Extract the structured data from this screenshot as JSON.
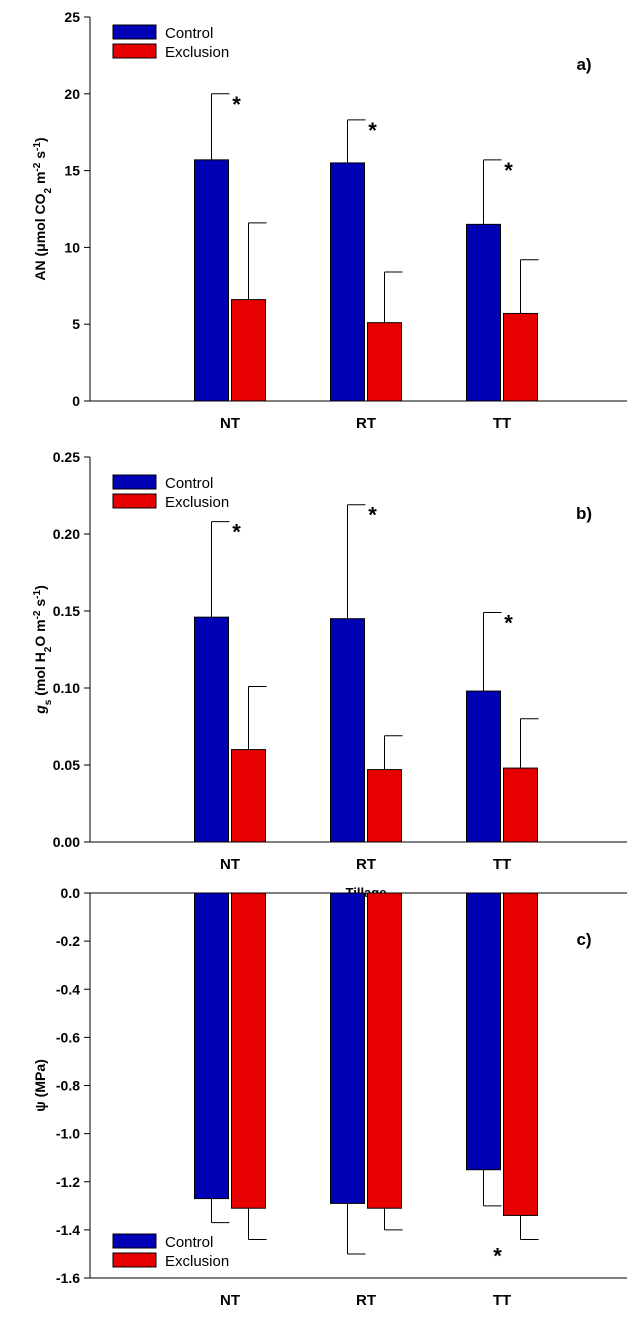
{
  "colors": {
    "control": "#0000b4",
    "exclusion": "#e60000"
  },
  "chart_data": [
    {
      "type": "bar",
      "panel_label": "a)",
      "categories": [
        "NT",
        "RT",
        "TT"
      ],
      "xlabel": "",
      "ylabel_parts": [
        "AN (",
        "μ",
        "mol CO",
        "2",
        " m",
        "-2",
        " s",
        "-1",
        ")"
      ],
      "ylim": [
        0,
        25
      ],
      "yticks": [
        0,
        5,
        10,
        15,
        20,
        25
      ],
      "ytick_labels": [
        "0",
        "5",
        "10",
        "15",
        "20",
        "25"
      ],
      "legend": {
        "position": "top-left",
        "entries": [
          "Control",
          "Exclusion"
        ]
      },
      "series": [
        {
          "name": "Control",
          "values": [
            15.7,
            15.5,
            11.5
          ],
          "error": [
            4.3,
            2.8,
            4.2
          ]
        },
        {
          "name": "Exclusion",
          "values": [
            6.6,
            5.1,
            5.7
          ],
          "error": [
            5.0,
            3.3,
            3.5
          ]
        }
      ],
      "annotations": [
        {
          "text": "*",
          "category": "NT",
          "series": "Control"
        },
        {
          "text": "*",
          "category": "RT",
          "series": "Control"
        },
        {
          "text": "*",
          "category": "TT",
          "series": "Control"
        }
      ]
    },
    {
      "type": "bar",
      "panel_label": "b)",
      "categories": [
        "NT",
        "RT",
        "TT"
      ],
      "xlabel": "Tillage",
      "ylabel_parts": [
        "g",
        "s",
        " (mol H",
        "2",
        "O m",
        "-2",
        " s",
        "-1",
        ")"
      ],
      "ylim": [
        0,
        0.25
      ],
      "yticks": [
        0,
        0.05,
        0.1,
        0.15,
        0.2,
        0.25
      ],
      "ytick_labels": [
        "0.00",
        "0.05",
        "0.10",
        "0.15",
        "0.20",
        "0.25"
      ],
      "legend": {
        "position": "top-left",
        "entries": [
          "Control",
          "Exclusion"
        ]
      },
      "series": [
        {
          "name": "Control",
          "values": [
            0.146,
            0.145,
            0.098
          ],
          "error": [
            0.062,
            0.074,
            0.051
          ]
        },
        {
          "name": "Exclusion",
          "values": [
            0.06,
            0.047,
            0.048
          ],
          "error": [
            0.041,
            0.022,
            0.032
          ]
        }
      ],
      "annotations": [
        {
          "text": "*",
          "category": "NT",
          "series": "Control"
        },
        {
          "text": "*",
          "category": "RT",
          "series": "Control"
        },
        {
          "text": "*",
          "category": "TT",
          "series": "Control"
        }
      ]
    },
    {
      "type": "bar",
      "panel_label": "c)",
      "categories": [
        "NT",
        "RT",
        "TT"
      ],
      "xlabel": "",
      "ylabel_parts": [
        "ψ",
        " (MPa)"
      ],
      "ylim": [
        -1.6,
        0
      ],
      "yticks": [
        0,
        -0.2,
        -0.4,
        -0.6,
        -0.8,
        -1.0,
        -1.2,
        -1.4,
        -1.6
      ],
      "ytick_labels": [
        "0.0",
        "-0.2",
        "-0.4",
        "-0.6",
        "-0.8",
        "-1.0",
        "-1.2",
        "-1.4",
        "-1.6"
      ],
      "legend": {
        "position": "bottom-left",
        "entries": [
          "Control",
          "Exclusion"
        ]
      },
      "series": [
        {
          "name": "Control",
          "values": [
            -1.27,
            -1.29,
            -1.15
          ],
          "error": [
            0.1,
            0.21,
            0.15
          ]
        },
        {
          "name": "Exclusion",
          "values": [
            -1.31,
            -1.31,
            -1.34
          ],
          "error": [
            0.13,
            0.09,
            0.1
          ]
        }
      ],
      "annotations": [
        {
          "text": "*",
          "category": "TT",
          "series": "Exclusion"
        }
      ]
    }
  ]
}
